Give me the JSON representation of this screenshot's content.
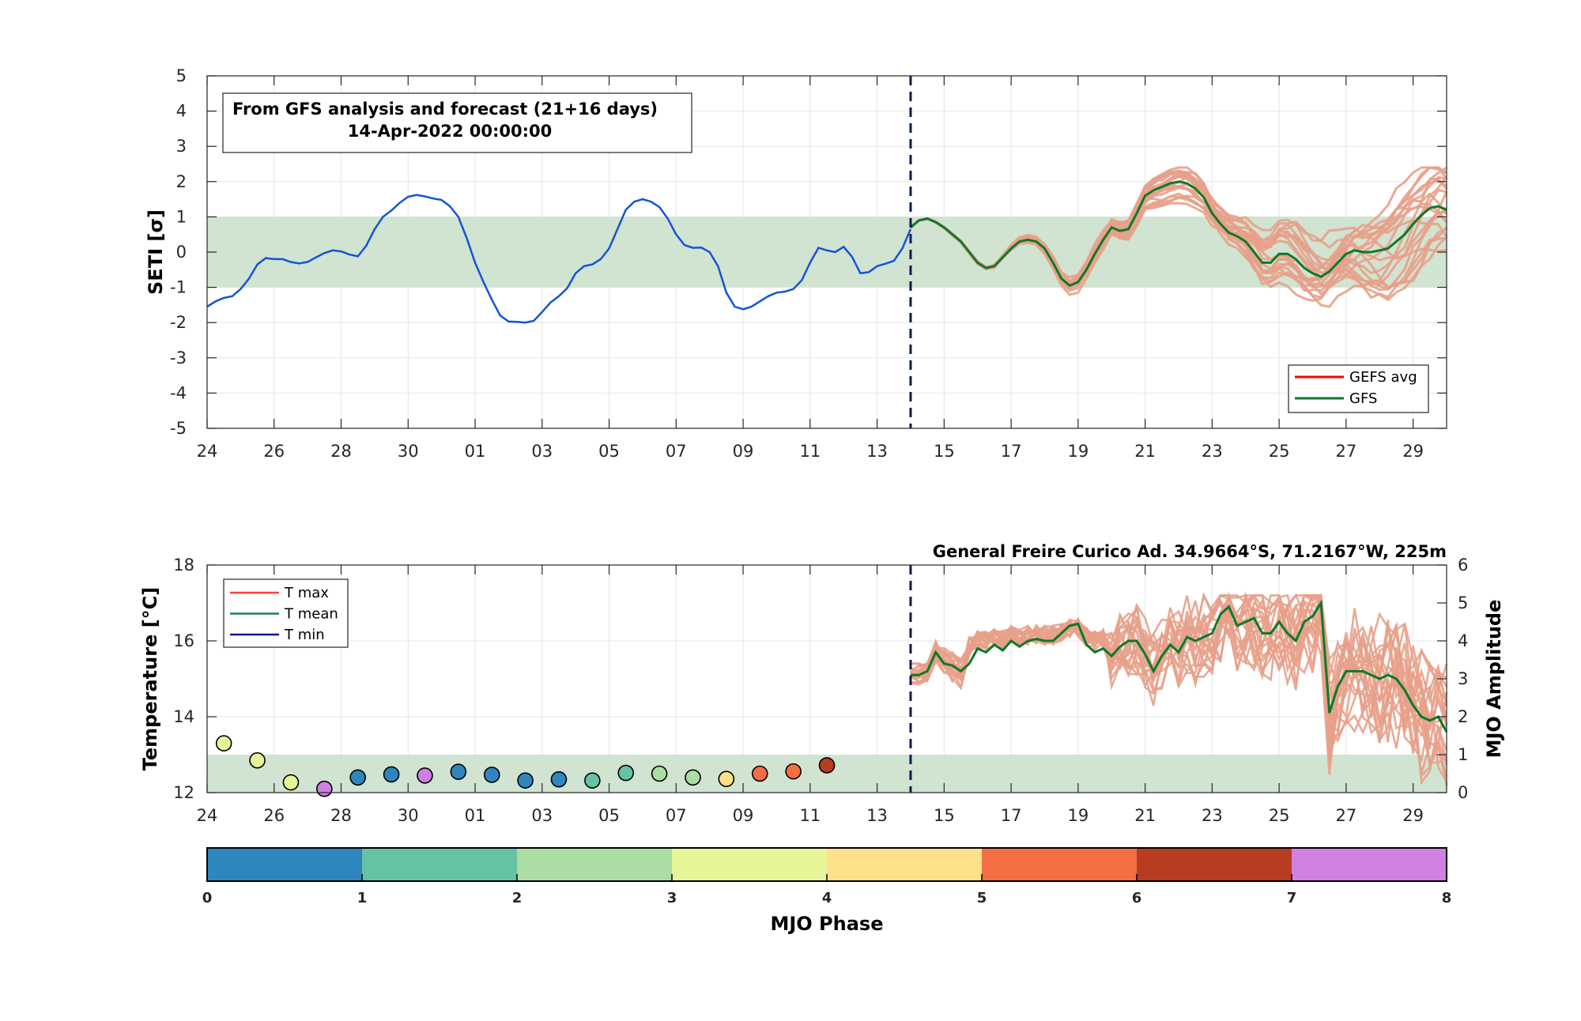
{
  "colors": {
    "shade": "#cfe2cf",
    "analysis": "#1454d8",
    "members": "#e8a08a",
    "gfs": "#0a7a2a",
    "gefs_avg": "#ff0000",
    "tmax": "#ff4040",
    "tmean": "#1f7a6a",
    "tmin": "#1010a0",
    "divider": "#0d1b4e",
    "grid": "#e6e6e6",
    "axis": "#262626"
  },
  "chart_data": [
    {
      "type": "line",
      "ylabel": "SETI [σ]",
      "ylim": [
        -5,
        5
      ],
      "yticks": [
        -5,
        -4,
        -3,
        -2,
        -1,
        0,
        1,
        2,
        3,
        4,
        5
      ],
      "xlim": [
        0,
        37
      ],
      "xticks": [
        0,
        2,
        4,
        6,
        8,
        10,
        12,
        14,
        16,
        18,
        20,
        22,
        24,
        26,
        28,
        30,
        32,
        34,
        36
      ],
      "xticklabels": [
        "24",
        "26",
        "28",
        "30",
        "01",
        "03",
        "05",
        "07",
        "09",
        "11",
        "13",
        "15",
        "17",
        "19",
        "21",
        "23",
        "25",
        "27",
        "29"
      ],
      "grid": true,
      "shade_band": [
        -1,
        1
      ],
      "divider_x": 21,
      "annotation": {
        "line1": "From GFS analysis and forecast (21+16 days)",
        "line2": "14-Apr-2022 00:00:00"
      },
      "legend": {
        "position": "bottom-right",
        "entries": [
          "GEFS avg",
          "GFS"
        ]
      },
      "analysis": {
        "x": [
          0,
          0.25,
          0.5,
          0.75,
          1,
          1.25,
          1.5,
          1.75,
          2,
          2.25,
          2.5,
          2.75,
          3,
          3.25,
          3.5,
          3.75,
          4,
          4.25,
          4.5,
          4.75,
          5,
          5.25,
          5.5,
          5.75,
          6,
          6.25,
          6.5,
          6.75,
          7,
          7.25,
          7.5,
          7.75,
          8,
          8.25,
          8.5,
          8.75,
          9,
          9.25,
          9.5,
          9.75,
          10,
          10.25,
          10.5,
          10.75,
          11,
          11.25,
          11.5,
          11.75,
          12,
          12.25,
          12.5,
          12.75,
          13,
          13.25,
          13.5,
          13.75,
          14,
          14.25,
          14.5,
          14.75,
          15,
          15.25,
          15.5,
          15.75,
          16,
          16.25,
          16.5,
          16.75,
          17,
          17.25,
          17.5,
          17.75,
          18,
          18.25,
          18.5,
          18.75,
          19,
          19.25,
          19.5,
          19.75,
          20,
          20.25,
          20.5,
          20.75,
          21
        ],
        "y": [
          -1.55,
          -1.4,
          -1.3,
          -1.25,
          -1.05,
          -0.75,
          -0.35,
          -0.17,
          -0.2,
          -0.2,
          -0.28,
          -0.32,
          -0.28,
          -0.15,
          -0.03,
          0.05,
          0.02,
          -0.07,
          -0.12,
          0.18,
          0.65,
          1.0,
          1.18,
          1.4,
          1.57,
          1.62,
          1.58,
          1.52,
          1.48,
          1.3,
          1.0,
          0.4,
          -0.3,
          -0.85,
          -1.35,
          -1.8,
          -1.97,
          -1.98,
          -2.0,
          -1.95,
          -1.7,
          -1.43,
          -1.25,
          -1.02,
          -0.6,
          -0.4,
          -0.35,
          -0.2,
          0.1,
          0.65,
          1.2,
          1.43,
          1.5,
          1.43,
          1.28,
          0.95,
          0.5,
          0.2,
          0.12,
          0.13,
          0.0,
          -0.4,
          -1.15,
          -1.55,
          -1.62,
          -1.55,
          -1.4,
          -1.25,
          -1.15,
          -1.12,
          -1.05,
          -0.8,
          -0.3,
          0.12,
          0.05,
          0.0,
          0.15,
          -0.13,
          -0.6,
          -0.57,
          -0.4,
          -0.33,
          -0.25,
          0.1,
          0.65
        ]
      },
      "gfs": {
        "x": [
          21,
          21.25,
          21.5,
          21.75,
          22,
          22.25,
          22.5,
          22.75,
          23,
          23.25,
          23.5,
          23.75,
          24,
          24.25,
          24.5,
          24.75,
          25,
          25.25,
          25.5,
          25.75,
          26,
          26.25,
          26.5,
          26.75,
          27,
          27.25,
          27.5,
          27.75,
          28,
          28.25,
          28.5,
          28.75,
          29,
          29.25,
          29.5,
          29.75,
          30,
          30.25,
          30.5,
          30.75,
          31,
          31.25,
          31.5,
          31.75,
          32,
          32.25,
          32.5,
          32.75,
          33,
          33.25,
          33.5,
          33.75,
          34,
          34.25,
          34.5,
          34.75,
          35,
          35.25,
          35.5,
          35.75,
          36,
          36.25,
          36.5,
          36.75,
          37
        ],
        "y": [
          0.7,
          0.9,
          0.95,
          0.85,
          0.7,
          0.5,
          0.3,
          0.0,
          -0.3,
          -0.45,
          -0.4,
          -0.15,
          0.1,
          0.3,
          0.35,
          0.3,
          0.1,
          -0.3,
          -0.75,
          -0.95,
          -0.85,
          -0.5,
          -0.05,
          0.35,
          0.7,
          0.6,
          0.65,
          1.1,
          1.6,
          1.75,
          1.85,
          1.95,
          2.0,
          1.95,
          1.8,
          1.55,
          1.1,
          0.8,
          0.55,
          0.45,
          0.3,
          0.0,
          -0.3,
          -0.3,
          -0.05,
          -0.05,
          -0.2,
          -0.45,
          -0.6,
          -0.7,
          -0.55,
          -0.3,
          -0.05,
          0.05,
          0.0,
          0.0,
          0.05,
          0.1,
          0.3,
          0.5,
          0.8,
          1.05,
          1.25,
          1.3,
          1.2
        ]
      }
    },
    {
      "type": "scatter",
      "ylabel": "Temperature [°C]",
      "ylabel_right": "MJO Amplitude",
      "ylim": [
        12,
        18
      ],
      "yticks": [
        12,
        14,
        16,
        18
      ],
      "ylim_right": [
        0,
        6
      ],
      "yticks_right": [
        0,
        1,
        2,
        3,
        4,
        5,
        6
      ],
      "xlim": [
        0,
        37
      ],
      "xticks": [
        0,
        2,
        4,
        6,
        8,
        10,
        12,
        14,
        16,
        18,
        20,
        22,
        24,
        26,
        28,
        30,
        32,
        34,
        36
      ],
      "xticklabels": [
        "24",
        "26",
        "28",
        "30",
        "01",
        "03",
        "05",
        "07",
        "09",
        "11",
        "13",
        "15",
        "17",
        "19",
        "21",
        "23",
        "25",
        "27",
        "29"
      ],
      "grid": true,
      "shade_band_right": [
        0,
        1
      ],
      "divider_x": 21,
      "station": "General Freire Curico Ad. 34.9664°S, 71.2167°W, 225m",
      "legend": {
        "position": "top-left",
        "entries": [
          "T max",
          "T mean",
          "T min"
        ]
      },
      "mjo_points": {
        "x": [
          0.5,
          1.5,
          2.5,
          3.5,
          4.5,
          5.5,
          6.5,
          7.5,
          8.5,
          9.5,
          10.5,
          11.5,
          12.5,
          13.5,
          14.5,
          15.5,
          16.5,
          17.5,
          18.5
        ],
        "amplitude": [
          1.3,
          0.85,
          0.27,
          0.1,
          0.4,
          0.48,
          0.45,
          0.55,
          0.47,
          0.32,
          0.35,
          0.32,
          0.52,
          0.5,
          0.4,
          0.36,
          0.5,
          0.56,
          0.72
        ],
        "phase": [
          3.5,
          3.5,
          3.5,
          7.5,
          0.5,
          0.5,
          7.5,
          0.5,
          0.5,
          0.5,
          0.5,
          1.5,
          1.5,
          2.5,
          2.5,
          4.5,
          5.5,
          5.5,
          6.5
        ]
      },
      "gfs_tmean": {
        "x": [
          21,
          21.25,
          21.5,
          21.75,
          22,
          22.25,
          22.5,
          22.75,
          23,
          23.25,
          23.5,
          23.75,
          24,
          24.25,
          24.5,
          24.75,
          25,
          25.25,
          25.5,
          25.75,
          26,
          26.25,
          26.5,
          26.75,
          27,
          27.25,
          27.5,
          27.75,
          28,
          28.25,
          28.5,
          28.75,
          29,
          29.25,
          29.5,
          29.75,
          30,
          30.25,
          30.5,
          30.75,
          31,
          31.25,
          31.5,
          31.75,
          32,
          32.25,
          32.5,
          32.75,
          33,
          33.25,
          33.5,
          33.75,
          34,
          34.25,
          34.5,
          34.75,
          35,
          35.25,
          35.5,
          35.75,
          36,
          36.25,
          36.5,
          36.75,
          37
        ],
        "y": [
          15.1,
          15.1,
          15.2,
          15.7,
          15.4,
          15.35,
          15.2,
          15.4,
          15.8,
          15.7,
          15.9,
          15.75,
          16.0,
          15.85,
          16.0,
          16.05,
          16.0,
          16.0,
          16.2,
          16.4,
          16.45,
          15.9,
          15.7,
          15.8,
          15.6,
          15.85,
          16.0,
          16.0,
          15.65,
          15.2,
          15.6,
          15.9,
          15.7,
          16.1,
          16.0,
          16.1,
          16.2,
          16.7,
          16.9,
          16.4,
          16.5,
          16.6,
          16.2,
          16.2,
          16.5,
          16.2,
          16.0,
          16.5,
          16.65,
          17.0,
          14.1,
          14.8,
          15.2,
          15.2,
          15.2,
          15.1,
          15.0,
          15.1,
          15.0,
          14.7,
          14.3,
          14.0,
          13.9,
          14.0,
          13.6
        ]
      }
    },
    {
      "type": "colorbar",
      "xlabel": "MJO Phase",
      "range": [
        0,
        8
      ],
      "ticks": [
        "0",
        "1",
        "2",
        "3",
        "4",
        "5",
        "6",
        "7",
        "8"
      ],
      "segments": [
        "#2f86bf",
        "#66c2a5",
        "#abdda4",
        "#e6f598",
        "#fee08b",
        "#f46d43",
        "#b73c22",
        "#cf80e0"
      ]
    }
  ]
}
